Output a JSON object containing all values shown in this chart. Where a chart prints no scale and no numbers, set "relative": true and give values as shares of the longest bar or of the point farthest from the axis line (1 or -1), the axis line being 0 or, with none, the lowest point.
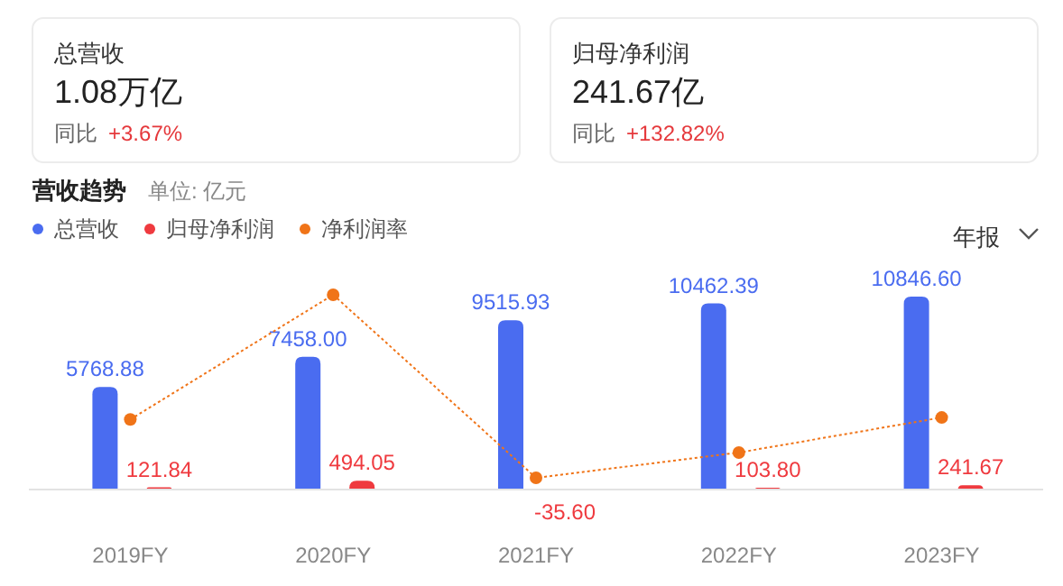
{
  "chart_data": [
    {
      "type": "other",
      "title": "总营收",
      "subtitle": "1.08万亿",
      "annotations": [
        "同比",
        "+3.67%"
      ]
    },
    {
      "type": "other",
      "title": "归母净利润",
      "subtitle": "241.67亿",
      "annotations": [
        "同比",
        "+132.82%"
      ]
    },
    {
      "type": "bar",
      "title": "营收趋势",
      "subtitle": "单位: 亿元",
      "annotations": [
        "年报"
      ],
      "categories": [
        "2019FY",
        "2020FY",
        "2021FY",
        "2022FY",
        "2023FY"
      ],
      "legend": "top left",
      "series": [
        {
          "name": "总营收",
          "color": "#4a6cf0",
          "values": [
            5768.88,
            7458.0,
            9515.93,
            10462.39,
            10846.6
          ],
          "value_labels": [
            "5768.88",
            "7458.00",
            "9515.93",
            "10462.39",
            "10846.60"
          ]
        },
        {
          "name": "归母净利润",
          "color": "#ef3a3f",
          "values": [
            121.84,
            494.05,
            -35.6,
            103.8,
            241.67
          ],
          "value_labels": [
            "121.84",
            "494.05",
            "-35.60",
            "103.80",
            "241.67"
          ]
        }
      ]
    },
    {
      "type": "line",
      "relative": true,
      "legend": "top left",
      "categories": [
        null,
        null,
        null,
        null,
        null
      ],
      "series": [
        {
          "name": "净利润率",
          "color": "#f07418",
          "marker": "circle",
          "line_style": "dotted",
          "values": [
            0.36,
            1,
            0.06,
            0.19,
            0.37
          ]
        }
      ]
    }
  ]
}
